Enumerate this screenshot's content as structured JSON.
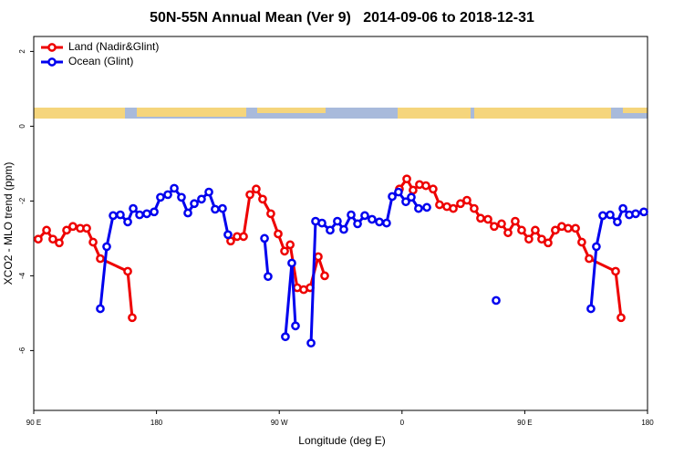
{
  "chart_data": {
    "type": "line",
    "title": "50N-55N Annual Mean (Ver 9)   2014-09-06 to 2018-12-31",
    "x_label": "Longitude (deg E)",
    "y_label": "XCO2 - MLO trend (ppm)",
    "xlim": [
      90,
      540
    ],
    "xticks": [
      {
        "value": 90,
        "label": "90 E"
      },
      180,
      {
        "value": 270,
        "label": "90 W"
      },
      {
        "value": 360,
        "label": "0"
      },
      {
        "value": 450,
        "label": "90 E"
      },
      {
        "value": 540,
        "label": "180"
      }
    ],
    "ylim": [
      -7.6,
      2.4
    ],
    "yticks": [
      -6,
      -4,
      -2,
      0,
      2
    ],
    "legend": "top-left",
    "series": [
      {
        "name": "Land (Nadir&Glint)",
        "color": "#ee0000",
        "x": [
          93.3,
          99.4,
          104.0,
          108.7,
          114.1,
          118.7,
          124.1,
          128.8,
          133.5,
          138.8,
          158.9,
          162.2,
          null,
          234.4,
          239.1,
          243.8,
          248.5,
          253.1,
          257.8,
          263.8,
          269.2,
          273.9,
          278.0,
          283.2,
          287.9,
          292.6,
          298.6,
          303.3,
          null,
          358.1,
          363.5,
          368.1,
          372.8,
          377.5,
          382.8,
          387.5,
          392.9,
          397.6,
          402.9,
          407.6,
          412.9,
          417.6,
          423.0,
          427.6,
          433.0,
          437.7,
          443.0,
          447.7,
          453.0,
          457.7,
          462.4,
          467.1,
          472.4,
          477.1,
          481.8,
          487.2,
          491.8,
          497.2,
          516.6,
          520.6
        ],
        "values": [
          -3.02,
          -2.78,
          -3.02,
          -3.12,
          -2.78,
          -2.68,
          -2.73,
          -2.73,
          -3.1,
          -3.54,
          -3.88,
          -5.12,
          null,
          -3.07,
          -2.95,
          -2.95,
          -1.83,
          -1.68,
          -1.95,
          -2.34,
          -2.88,
          -3.34,
          -3.17,
          -4.32,
          -4.37,
          -4.32,
          -3.49,
          -4.0,
          null,
          -1.68,
          -1.41,
          -1.71,
          -1.56,
          -1.59,
          -1.68,
          -2.1,
          -2.15,
          -2.2,
          -2.07,
          -1.98,
          -2.2,
          -2.46,
          -2.49,
          -2.68,
          -2.61,
          -2.85,
          -2.54,
          -2.78,
          -3.02,
          -2.78,
          -3.02,
          -3.12,
          -2.78,
          -2.68,
          -2.73,
          -2.73,
          -3.1,
          -3.54,
          -3.88,
          -5.12
        ]
      },
      {
        "name": "Ocean (Glint)",
        "color": "#0000ee",
        "x": [
          138.8,
          143.5,
          148.2,
          153.5,
          158.9,
          162.9,
          167.6,
          172.9,
          178.3,
          182.9,
          188.3,
          193.0,
          198.3,
          203.0,
          207.7,
          213.0,
          218.4,
          223.0,
          228.4,
          232.4,
          null,
          259.2,
          261.8,
          null,
          274.5,
          279.2,
          281.9,
          null,
          293.3,
          296.6,
          301.3,
          307.3,
          312.6,
          317.3,
          322.7,
          327.4,
          332.7,
          338.0,
          343.4,
          348.7,
          352.8,
          357.4,
          362.8,
          366.8,
          372.1,
          378.2,
          null,
          429.0,
          null,
          498.5,
          502.5,
          507.2,
          512.6,
          517.9,
          522.0,
          526.6,
          531.3,
          537.3
        ],
        "values": [
          -4.88,
          -3.22,
          -2.39,
          -2.37,
          -2.56,
          -2.2,
          -2.37,
          -2.34,
          -2.29,
          -1.9,
          -1.83,
          -1.66,
          -1.9,
          -2.32,
          -2.07,
          -1.95,
          -1.76,
          -2.22,
          -2.2,
          -2.9,
          null,
          -3.0,
          -4.02,
          null,
          -5.63,
          -3.66,
          -5.34,
          null,
          -5.8,
          -2.54,
          -2.59,
          -2.78,
          -2.54,
          -2.76,
          -2.37,
          -2.61,
          -2.39,
          -2.49,
          -2.56,
          -2.59,
          -1.88,
          -1.76,
          -2.02,
          -1.9,
          -2.2,
          -2.17,
          null,
          -4.66,
          null,
          -4.88,
          -3.22,
          -2.39,
          -2.37,
          -2.56,
          -2.2,
          -2.37,
          -2.34,
          -2.29
        ]
      }
    ]
  }
}
